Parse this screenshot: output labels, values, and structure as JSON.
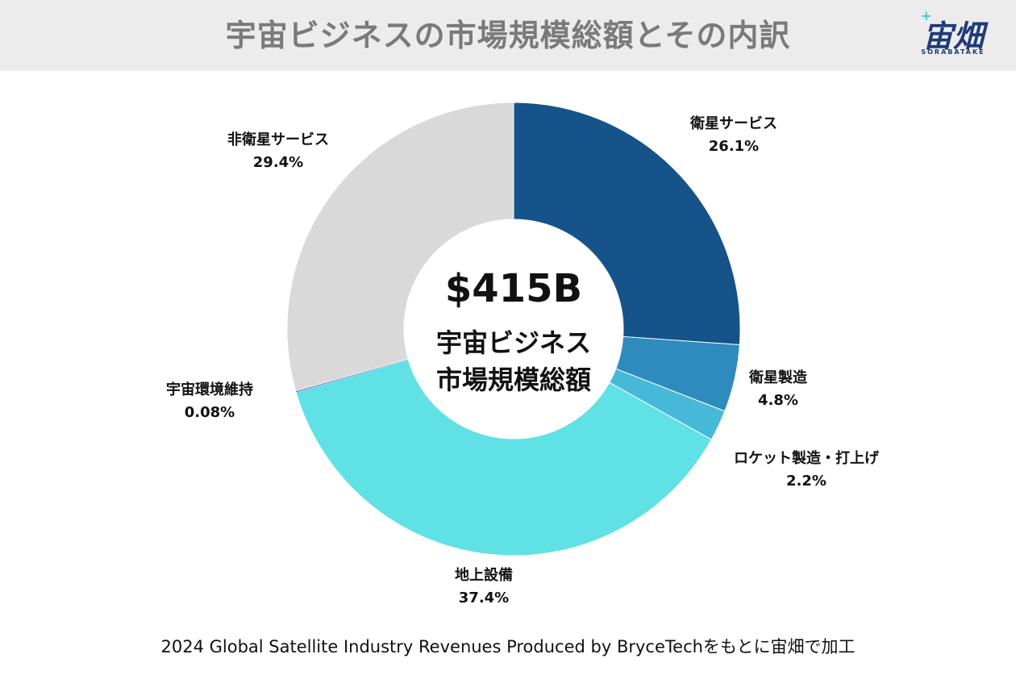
{
  "header": {
    "title": "宇宙ビジネスの市場規模総額とその内訳",
    "logo_text": "宙畑",
    "logo_subtext": "SORABATAKE"
  },
  "center": {
    "value": "$415B",
    "line1": "宇宙ビジネス",
    "line2": "市場規模総額"
  },
  "footer": {
    "source": "2024 Global Satellite Industry Revenues Produced by BryceTechをもとに宙畑で加工"
  },
  "chart_data": {
    "type": "pie",
    "donut": true,
    "total_label": "$415B",
    "slices": [
      {
        "name": "衛星サービス",
        "value": 26.1,
        "label": "26.1%",
        "color": "#15538a"
      },
      {
        "name": "衛星製造",
        "value": 4.8,
        "label": "4.8%",
        "color": "#2d8bbd"
      },
      {
        "name": "ロケット製造・打上げ",
        "value": 2.2,
        "label": "2.2%",
        "color": "#46b9d9"
      },
      {
        "name": "地上設備",
        "value": 37.4,
        "label": "37.4%",
        "color": "#5fe1e6"
      },
      {
        "name": "宇宙環境維持",
        "value": 0.08,
        "label": "0.08%",
        "color": "#5a3ea6"
      },
      {
        "name": "非衛星サービス",
        "value": 29.4,
        "label": "29.4%",
        "color": "#d9d9d9"
      }
    ]
  }
}
